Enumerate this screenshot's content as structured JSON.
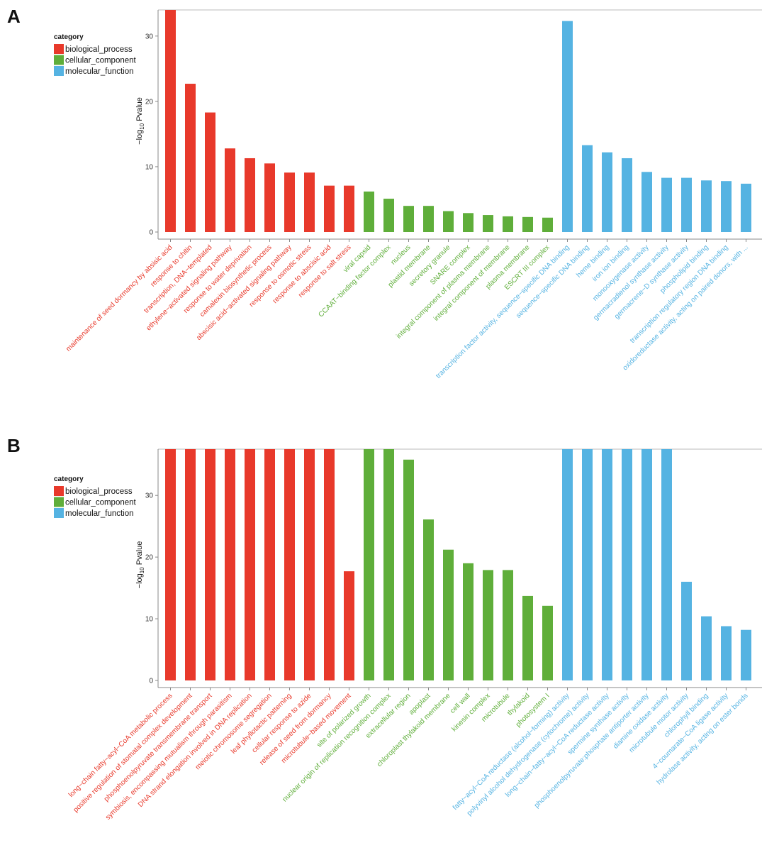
{
  "colors": {
    "biological_process": "#E8392B",
    "cellular_component": "#5FAE3A",
    "molecular_function": "#55B3E2"
  },
  "legend": {
    "title": "category",
    "entries": [
      "biological_process",
      "cellular_component",
      "molecular_function"
    ]
  },
  "chart_data": [
    {
      "panel": "A",
      "type": "bar",
      "ylabel_prefix": "−log",
      "ylabel_sub": "10",
      "ylabel_suffix": " Pvalue",
      "ylim": [
        0,
        34
      ],
      "yticks": [
        0,
        10,
        20,
        30
      ],
      "grid": false,
      "legend_position": "top-left",
      "categories": [
        "maintenance of seed dormancy by absisic acid",
        "response to chitin",
        "transcription, DNA−templated",
        "ethylene−activated signaling pathway",
        "response to water deprivation",
        "camalexin biosynthetic process",
        "abscisic acid−activated signaling pathway",
        "response to osmotic stress",
        "response to abscisic acid",
        "response to salt stress",
        "viral capsid",
        "CCAAT−binding factor complex",
        "nucleus",
        "plastid membrane",
        "secretory granule",
        "SNARE complex",
        "integral component of plasma membrane",
        "integral component of membrane",
        "plasma membrane",
        "ESCRT III complex",
        "transcription factor activity, sequence−specific DNA binding",
        "sequence−specific DNA binding",
        "heme binding",
        "iron ion binding",
        "monooxygenase activity",
        "germacradienol synthase activity",
        "germacrene−D synthase activity",
        "phospholipid binding",
        "transcription regulatory region DNA binding",
        "oxidoreductase activity, acting on paired donors, with ..."
      ],
      "series": [
        {
          "name": "biological_process",
          "values": [
            34,
            22.7,
            18.3,
            12.8,
            11.3,
            10.5,
            9.1,
            9.1,
            7.1,
            7.1,
            null,
            null,
            null,
            null,
            null,
            null,
            null,
            null,
            null,
            null,
            null,
            null,
            null,
            null,
            null,
            null,
            null,
            null,
            null,
            null
          ]
        },
        {
          "name": "cellular_component",
          "values": [
            null,
            null,
            null,
            null,
            null,
            null,
            null,
            null,
            null,
            null,
            6.2,
            5.1,
            4.0,
            4.0,
            3.2,
            2.9,
            2.6,
            2.4,
            2.3,
            2.2,
            null,
            null,
            null,
            null,
            null,
            null,
            null,
            null,
            null,
            null
          ]
        },
        {
          "name": "molecular_function",
          "values": [
            null,
            null,
            null,
            null,
            null,
            null,
            null,
            null,
            null,
            null,
            null,
            null,
            null,
            null,
            null,
            null,
            null,
            null,
            null,
            null,
            32.3,
            13.3,
            12.2,
            11.3,
            9.2,
            8.3,
            8.3,
            7.9,
            7.8,
            7.4
          ]
        }
      ]
    },
    {
      "panel": "B",
      "type": "bar",
      "ylabel_prefix": "−log",
      "ylabel_sub": "10",
      "ylabel_suffix": " Pvalue",
      "ylim": [
        0,
        37.5
      ],
      "yticks": [
        0,
        10,
        20,
        30
      ],
      "grid": false,
      "legend_position": "top-left",
      "categories": [
        "long−chain fatty−acyl−CoA metabolic process",
        "positive regulation of stomatal complex development",
        "phosphoenolpyruvate transmembrane transport",
        "symbiosis, encompassing mutualism through parasitism",
        "DNA strand elongation involved in DNA replication",
        "meiotic chromosome segregation",
        "leaf phyllotactic patterning",
        "cellular response to azide",
        "release of seed from dormancy",
        "microtubule−based movement",
        "site of polarized growth",
        "nuclear origin of replication recognition complex",
        "extracellular region",
        "apoplast",
        "chloroplast thylakoid membrane",
        "cell wall",
        "kinesin complex",
        "microtubule",
        "thylakoid",
        "photosystem I",
        "fatty−acyl−CoA reductase (alcohol−forming) activity",
        "polyvinyl alcohol dehydrogenase (cytochrome) activity",
        "long−chain−fatty−acyl−CoA reductase activity",
        "spermine synthase activity",
        "phosphoenolpyruvate:phosphate antiporter activity",
        "diamine oxidase activity",
        "microtubule motor activity",
        "chlorophyll binding",
        "4−coumarate−CoA ligase activity",
        "hydrolase activity, acting on ester bonds"
      ],
      "series": [
        {
          "name": "biological_process",
          "values": [
            37.5,
            37.5,
            37.5,
            37.5,
            37.5,
            37.5,
            37.5,
            37.5,
            37.5,
            17.7,
            null,
            null,
            null,
            null,
            null,
            null,
            null,
            null,
            null,
            null,
            null,
            null,
            null,
            null,
            null,
            null,
            null,
            null,
            null,
            null
          ]
        },
        {
          "name": "cellular_component",
          "values": [
            null,
            null,
            null,
            null,
            null,
            null,
            null,
            null,
            null,
            null,
            37.5,
            37.5,
            35.8,
            26.1,
            21.2,
            19.0,
            17.9,
            17.9,
            13.7,
            12.1,
            null,
            null,
            null,
            null,
            null,
            null,
            null,
            null,
            null,
            null
          ]
        },
        {
          "name": "molecular_function",
          "values": [
            null,
            null,
            null,
            null,
            null,
            null,
            null,
            null,
            null,
            null,
            null,
            null,
            null,
            null,
            null,
            null,
            null,
            null,
            null,
            null,
            37.5,
            37.5,
            37.5,
            37.5,
            37.5,
            37.5,
            16.0,
            10.4,
            8.8,
            8.2
          ]
        }
      ]
    }
  ]
}
